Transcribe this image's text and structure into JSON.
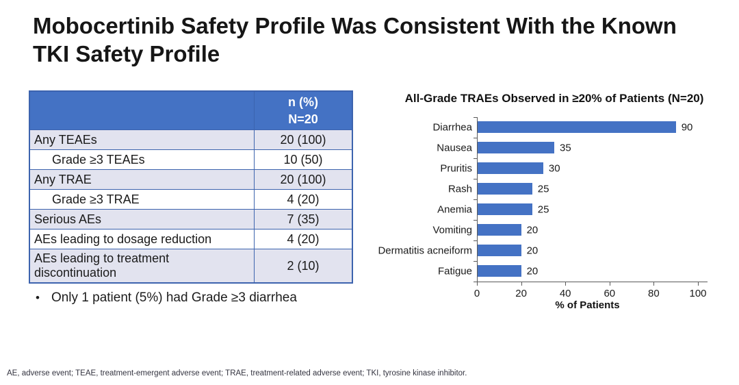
{
  "slide": {
    "title": "Mobocertinib Safety Profile Was Consistent With the Known TKI Safety Profile",
    "bullet_marker": "•",
    "bullet": "Only 1 patient (5%) had Grade ≥3 diarrhea",
    "footnote": "AE, adverse event; TEAE, treatment-emergent adverse event; TRAE, treatment-related adverse event; TKI, tyrosine kinase inhibitor."
  },
  "table": {
    "header": {
      "line1": "n (%)",
      "line2": "N=20"
    },
    "rows": [
      {
        "label": "Any TEAEs",
        "value": "20 (100)",
        "indent": false
      },
      {
        "label": "Grade ≥3 TEAEs",
        "value": "10 (50)",
        "indent": true
      },
      {
        "label": "Any TRAE",
        "value": "20 (100)",
        "indent": false
      },
      {
        "label": "Grade ≥3 TRAE",
        "value": "4 (20)",
        "indent": true
      },
      {
        "label": "Serious AEs",
        "value": "7 (35)",
        "indent": false
      },
      {
        "label": "AEs leading to dosage reduction",
        "value": "4 (20)",
        "indent": false
      },
      {
        "label": "AEs leading to treatment discontinuation",
        "value": "2 (10)",
        "indent": false
      }
    ]
  },
  "chart_data": {
    "type": "bar",
    "orientation": "horizontal",
    "title": "All-Grade TRAEs Observed in ≥20% of Patients (N=20)",
    "categories": [
      "Diarrhea",
      "Nausea",
      "Pruritis",
      "Rash",
      "Anemia",
      "Vomiting",
      "Dermatitis acneiform",
      "Fatigue"
    ],
    "values": [
      90,
      35,
      30,
      25,
      25,
      20,
      20,
      20
    ],
    "xlabel": "% of Patients",
    "xlim": [
      0,
      100
    ],
    "xticks": [
      0,
      20,
      40,
      60,
      80,
      100
    ],
    "bar_color": "#4472C4",
    "data_labels": true,
    "grid": false,
    "legend": false
  },
  "colors": {
    "table_header_bg": "#4472C4",
    "table_row_shaded": "#E2E3EF",
    "table_border": "#3C63AE",
    "bar": "#4472C4",
    "axis": "#595959"
  }
}
